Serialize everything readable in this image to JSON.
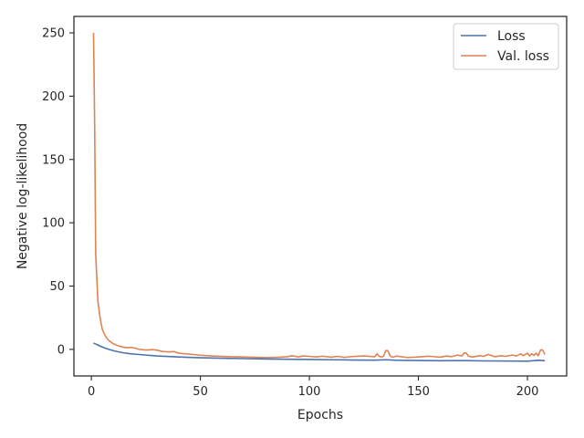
{
  "chart_data": {
    "type": "line",
    "xlabel": "Epochs",
    "ylabel": "Negative log-likelihood",
    "xlim": [
      -8,
      218
    ],
    "ylim": [
      -21,
      263
    ],
    "xticks": [
      0,
      50,
      100,
      150,
      200
    ],
    "yticks": [
      0,
      50,
      100,
      150,
      200,
      250
    ],
    "grid": false,
    "legend": "top-right",
    "series": [
      {
        "name": "Loss",
        "color": "#4c72b0",
        "x": [
          1,
          2,
          3,
          4,
          5,
          6,
          8,
          10,
          12,
          15,
          18,
          20,
          25,
          30,
          40,
          50,
          60,
          70,
          80,
          90,
          100,
          110,
          120,
          130,
          135,
          140,
          150,
          160,
          170,
          180,
          190,
          200,
          205,
          208
        ],
        "y": [
          5,
          4.2,
          3.4,
          2.6,
          1.9,
          1.2,
          0,
          -1,
          -1.8,
          -2.8,
          -3.5,
          -3.8,
          -4.5,
          -5.2,
          -6,
          -6.6,
          -7,
          -7.3,
          -7.6,
          -7.8,
          -8,
          -8.2,
          -8.4,
          -8.5,
          -8.2,
          -8.6,
          -8.8,
          -9,
          -8.9,
          -9.1,
          -9.2,
          -9.3,
          -8.6,
          -9
        ]
      },
      {
        "name": "Val. loss",
        "color": "#dd8452",
        "x": [
          1,
          1.5,
          2,
          3,
          4,
          5,
          6,
          7,
          8,
          10,
          12,
          14,
          16,
          18,
          20,
          22,
          25,
          28,
          30,
          32,
          35,
          38,
          40,
          45,
          50,
          55,
          60,
          65,
          70,
          75,
          80,
          85,
          90,
          92,
          95,
          97,
          100,
          103,
          106,
          110,
          113,
          116,
          120,
          125,
          130,
          131,
          132,
          133,
          134,
          135,
          136,
          137,
          138,
          140,
          145,
          150,
          155,
          160,
          163,
          165,
          168,
          170,
          171,
          172,
          173,
          175,
          178,
          180,
          182,
          185,
          188,
          190,
          193,
          195,
          197,
          198,
          200,
          201,
          202,
          203,
          204,
          205,
          206,
          207,
          208
        ],
        "y": [
          250,
          180,
          75,
          38,
          25,
          16,
          12,
          9,
          7,
          4.5,
          3,
          2,
          1.3,
          1.6,
          1,
          0,
          -0.5,
          -0.2,
          -0.6,
          -1.5,
          -2,
          -1.8,
          -3,
          -3.8,
          -4.6,
          -5.2,
          -5.5,
          -5.8,
          -6,
          -6.3,
          -6.5,
          -6.3,
          -5.8,
          -5,
          -6,
          -5.2,
          -5.5,
          -6,
          -5.4,
          -6.2,
          -5.5,
          -6.3,
          -5.6,
          -5.2,
          -5.8,
          -3.5,
          -5.5,
          -6,
          -5.5,
          -1,
          -1,
          -5,
          -6.2,
          -5.3,
          -6.5,
          -6,
          -5.4,
          -6.2,
          -5.2,
          -5.8,
          -4.5,
          -5.2,
          -2.8,
          -3,
          -5.5,
          -6,
          -5,
          -5.5,
          -4,
          -5.8,
          -5,
          -5.5,
          -4.5,
          -5.2,
          -3.5,
          -5,
          -3,
          -5.2,
          -3.5,
          -4.8,
          -3,
          -5,
          -0.5,
          -0.5,
          -4
        ]
      }
    ]
  }
}
